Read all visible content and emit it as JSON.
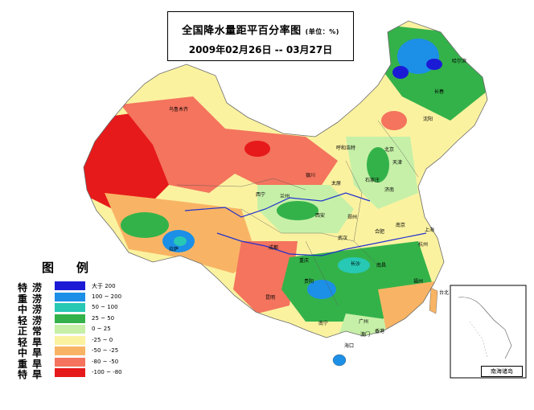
{
  "title": {
    "main": "全国降水量距平百分率图",
    "unit": "(单位：%)",
    "date": "2009年02月26日 -- 03月27日"
  },
  "legend": {
    "title": "图例",
    "items": [
      {
        "label": "特涝",
        "range": "大于 200",
        "color": "#1b1bd6"
      },
      {
        "label": "重涝",
        "range": "100 ~ 200",
        "color": "#1c8fe6"
      },
      {
        "label": "中涝",
        "range": "50 ~ 100",
        "color": "#27c8b4"
      },
      {
        "label": "轻涝",
        "range": "25 ~ 50",
        "color": "#34b24a"
      },
      {
        "label": "正常",
        "range": "0 ~ 25",
        "color": "#c6f0a8"
      },
      {
        "label": "轻旱",
        "range": "-25 ~ 0",
        "color": "#fbf2a0"
      },
      {
        "label": "中旱",
        "range": "-50 ~ -25",
        "color": "#f8b464"
      },
      {
        "label": "重旱",
        "range": "-80 ~ -50",
        "color": "#f4745e"
      },
      {
        "label": "特旱",
        "range": "-100 ~ -80",
        "color": "#e61a1a"
      }
    ]
  },
  "inset": {
    "caption": "南海诸岛"
  },
  "cities": [
    "乌鲁木齐",
    "拉萨",
    "西宁",
    "兰州",
    "银川",
    "呼和浩特",
    "北京",
    "天津",
    "石家庄",
    "太原",
    "济南",
    "西安",
    "郑州",
    "成都",
    "重庆",
    "武汉",
    "合肥",
    "南京",
    "上海",
    "杭州",
    "长沙",
    "南昌",
    "贵阳",
    "昆明",
    "南宁",
    "广州",
    "福州",
    "海口",
    "沈阳",
    "长春",
    "哈尔滨",
    "台北",
    "澳门",
    "香港"
  ]
}
